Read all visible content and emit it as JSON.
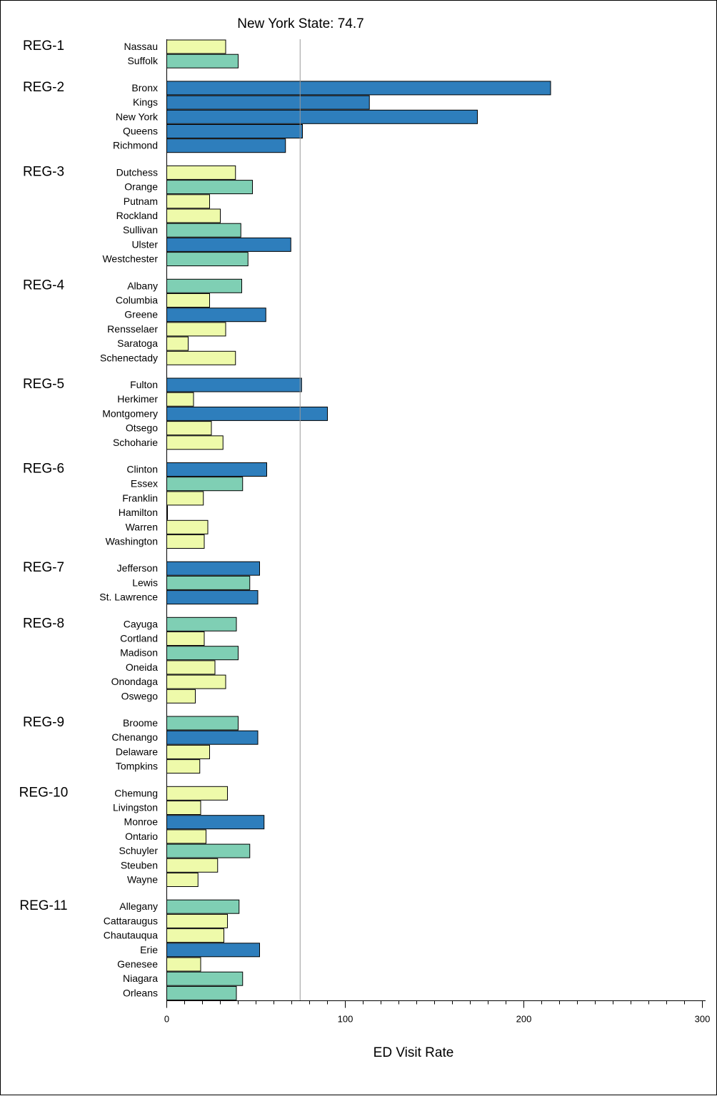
{
  "chart_data": {
    "type": "bar",
    "orientation": "horizontal",
    "title": "New York State:  74.7",
    "xlabel": "ED Visit Rate",
    "reference_line": 74.7,
    "xlim": [
      0,
      300
    ],
    "xticks": [
      0,
      100,
      200,
      300
    ],
    "grid": false,
    "colors": {
      "low": "#eefaaa",
      "mid": "#7fcfb4",
      "high": "#2e7ebc",
      "outline": "#000000",
      "reference": "#999999"
    },
    "regions": [
      {
        "label": "REG-1",
        "counties": [
          {
            "name": "Nassau",
            "value": 33,
            "level": "low"
          },
          {
            "name": "Suffolk",
            "value": 40,
            "level": "mid"
          }
        ]
      },
      {
        "label": "REG-2",
        "counties": [
          {
            "name": "Bronx",
            "value": 215,
            "level": "high"
          },
          {
            "name": "Kings",
            "value": 113.5,
            "level": "high"
          },
          {
            "name": "New York",
            "value": 174,
            "level": "high"
          },
          {
            "name": "Queens",
            "value": 76,
            "level": "high"
          },
          {
            "name": "Richmond",
            "value": 66.5,
            "level": "high"
          }
        ]
      },
      {
        "label": "REG-3",
        "counties": [
          {
            "name": "Dutchess",
            "value": 38.5,
            "level": "low"
          },
          {
            "name": "Orange",
            "value": 48,
            "level": "mid"
          },
          {
            "name": "Putnam",
            "value": 24,
            "level": "low"
          },
          {
            "name": "Rockland",
            "value": 30,
            "level": "low"
          },
          {
            "name": "Sullivan",
            "value": 41.5,
            "level": "mid"
          },
          {
            "name": "Ulster",
            "value": 69.5,
            "level": "high"
          },
          {
            "name": "Westchester",
            "value": 45.5,
            "level": "mid"
          }
        ]
      },
      {
        "label": "REG-4",
        "counties": [
          {
            "name": "Albany",
            "value": 42,
            "level": "mid"
          },
          {
            "name": "Columbia",
            "value": 24,
            "level": "low"
          },
          {
            "name": "Greene",
            "value": 55.5,
            "level": "high"
          },
          {
            "name": "Rensselaer",
            "value": 33,
            "level": "low"
          },
          {
            "name": "Saratoga",
            "value": 12,
            "level": "low"
          },
          {
            "name": "Schenectady",
            "value": 38.5,
            "level": "low"
          }
        ]
      },
      {
        "label": "REG-5",
        "counties": [
          {
            "name": "Fulton",
            "value": 75.5,
            "level": "high"
          },
          {
            "name": "Herkimer",
            "value": 15,
            "level": "low"
          },
          {
            "name": "Montgomery",
            "value": 90,
            "level": "high"
          },
          {
            "name": "Otsego",
            "value": 25,
            "level": "low"
          },
          {
            "name": "Schoharie",
            "value": 31.5,
            "level": "low"
          }
        ]
      },
      {
        "label": "REG-6",
        "counties": [
          {
            "name": "Clinton",
            "value": 56,
            "level": "high"
          },
          {
            "name": "Essex",
            "value": 42.5,
            "level": "mid"
          },
          {
            "name": "Franklin",
            "value": 20.5,
            "level": "low"
          },
          {
            "name": "Hamilton",
            "value": 0,
            "level": "low"
          },
          {
            "name": "Warren",
            "value": 23,
            "level": "low"
          },
          {
            "name": "Washington",
            "value": 21,
            "level": "low"
          }
        ]
      },
      {
        "label": "REG-7",
        "counties": [
          {
            "name": "Jefferson",
            "value": 52,
            "level": "high"
          },
          {
            "name": "Lewis",
            "value": 46.5,
            "level": "mid"
          },
          {
            "name": "St. Lawrence",
            "value": 51,
            "level": "high"
          }
        ]
      },
      {
        "label": "REG-8",
        "counties": [
          {
            "name": "Cayuga",
            "value": 39,
            "level": "mid"
          },
          {
            "name": "Cortland",
            "value": 21,
            "level": "low"
          },
          {
            "name": "Madison",
            "value": 40,
            "level": "mid"
          },
          {
            "name": "Oneida",
            "value": 27,
            "level": "low"
          },
          {
            "name": "Onondaga",
            "value": 33,
            "level": "low"
          },
          {
            "name": "Oswego",
            "value": 16,
            "level": "low"
          }
        ]
      },
      {
        "label": "REG-9",
        "counties": [
          {
            "name": "Broome",
            "value": 40,
            "level": "mid"
          },
          {
            "name": "Chenango",
            "value": 51,
            "level": "high"
          },
          {
            "name": "Delaware",
            "value": 24,
            "level": "low"
          },
          {
            "name": "Tompkins",
            "value": 18.5,
            "level": "low"
          }
        ]
      },
      {
        "label": "REG-10",
        "counties": [
          {
            "name": "Chemung",
            "value": 34,
            "level": "low"
          },
          {
            "name": "Livingston",
            "value": 19,
            "level": "low"
          },
          {
            "name": "Monroe",
            "value": 54.5,
            "level": "high"
          },
          {
            "name": "Ontario",
            "value": 22,
            "level": "low"
          },
          {
            "name": "Schuyler",
            "value": 46.5,
            "level": "mid"
          },
          {
            "name": "Steuben",
            "value": 28.5,
            "level": "low"
          },
          {
            "name": "Wayne",
            "value": 17.5,
            "level": "low"
          }
        ]
      },
      {
        "label": "REG-11",
        "counties": [
          {
            "name": "Allegany",
            "value": 40.5,
            "level": "mid"
          },
          {
            "name": "Cattaraugus",
            "value": 34,
            "level": "low"
          },
          {
            "name": "Chautauqua",
            "value": 32,
            "level": "low"
          },
          {
            "name": "Erie",
            "value": 52,
            "level": "high"
          },
          {
            "name": "Genesee",
            "value": 19,
            "level": "low"
          },
          {
            "name": "Niagara",
            "value": 42.5,
            "level": "mid"
          },
          {
            "name": "Orleans",
            "value": 39,
            "level": "mid"
          }
        ]
      }
    ]
  }
}
